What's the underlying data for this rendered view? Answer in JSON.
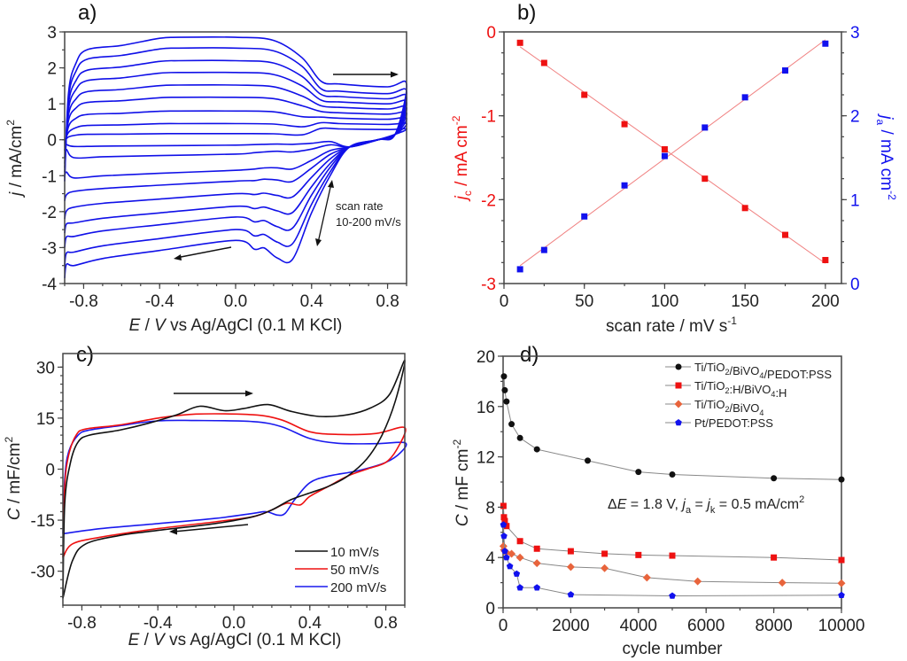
{
  "chart_data": [
    {
      "id": "a",
      "panel_label": "a)",
      "type": "line",
      "title": "",
      "xlabel": "E / V vs Ag/AgCl (0.1 M KCl)",
      "ylabel": "j / mA/cm2",
      "xlim": [
        -0.9,
        0.9
      ],
      "ylim": [
        -4,
        3
      ],
      "xticks": [
        "-0.8",
        "-0.4",
        "0.0",
        "0.4",
        "0.8"
      ],
      "xtick_values": [
        -0.8,
        -0.4,
        0.0,
        0.4,
        0.8
      ],
      "yticks": [
        "-4",
        "-3",
        "-2",
        "-1",
        "0",
        "1",
        "2",
        "3"
      ],
      "ytick_values": [
        -4,
        -3,
        -2,
        -1,
        0,
        1,
        2,
        3
      ],
      "color": "#1010e8",
      "annotation": [
        "scan rate",
        "10-200 mV/s"
      ],
      "scan_rates_mV_s": [
        10,
        25,
        50,
        75,
        100,
        125,
        150,
        175,
        200
      ],
      "anodic_plateau": [
        0.17,
        0.45,
        0.8,
        1.18,
        1.52,
        1.87,
        2.2,
        2.55,
        2.85
      ],
      "anodic_end": [
        0.3,
        0.45,
        0.6,
        0.75,
        0.9,
        1.05,
        1.2,
        1.35,
        1.55
      ],
      "cathodic_plateau": [
        -0.15,
        -0.4,
        -0.85,
        -1.15,
        -1.5,
        -1.85,
        -2.15,
        -2.5,
        -2.8
      ],
      "cathodic_start": [
        -0.15,
        -0.3,
        -1.0,
        -1.7,
        -2.2,
        -2.6,
        -3.0,
        -3.5,
        -3.85
      ],
      "cathodic_peak_depth": [
        0,
        0,
        0.1,
        0.2,
        0.35,
        0.5,
        0.7,
        0.85,
        1.05
      ]
    },
    {
      "id": "b",
      "panel_label": "b)",
      "type": "scatter",
      "title": "",
      "xlabel": "scan rate / mV s-1",
      "ylabel_left": "jc / mA cm-2",
      "ylabel_right": "ja / mA cm-2",
      "xlim": [
        0,
        210
      ],
      "ylim_left": [
        -3,
        0
      ],
      "ylim_right": [
        0,
        3
      ],
      "xticks": [
        "0",
        "50",
        "100",
        "150",
        "200"
      ],
      "xtick_values": [
        0,
        50,
        100,
        150,
        200
      ],
      "yticks_left": [
        "-3",
        "-2",
        "-1",
        "0"
      ],
      "ytick_left_values": [
        -3,
        -2,
        -1,
        0
      ],
      "yticks_right": [
        "0",
        "1",
        "2",
        "3"
      ],
      "ytick_right_values": [
        0,
        1,
        2,
        3
      ],
      "fit_color": "#f08080",
      "x": [
        10,
        25,
        50,
        75,
        100,
        125,
        150,
        175,
        200
      ],
      "series": [
        {
          "name": "jc",
          "axis": "left",
          "color": "#ee1111",
          "values": [
            -0.13,
            -0.37,
            -0.75,
            -1.1,
            -1.4,
            -1.75,
            -2.1,
            -2.42,
            -2.72
          ]
        },
        {
          "name": "ja",
          "axis": "right",
          "color": "#1111ee",
          "values": [
            0.17,
            0.4,
            0.8,
            1.17,
            1.52,
            1.86,
            2.22,
            2.54,
            2.86
          ]
        }
      ]
    },
    {
      "id": "c",
      "panel_label": "c)",
      "type": "line",
      "title": "",
      "xlabel": "E / V vs Ag/AgCl (0.1 M KCl)",
      "ylabel": "C / mF/cm2",
      "xlim": [
        -0.9,
        0.9
      ],
      "ylim": [
        -40,
        34
      ],
      "xticks": [
        "-0.8",
        "-0.4",
        "0.0",
        "0.4",
        "0.8"
      ],
      "xtick_values": [
        -0.8,
        -0.4,
        0.0,
        0.4,
        0.8
      ],
      "yticks": [
        "-30",
        "-15",
        "0",
        "15",
        "30"
      ],
      "ytick_values": [
        -30,
        -15,
        0,
        15,
        30
      ],
      "legend_position": "bottom-right",
      "series": [
        {
          "name": "10 mV/s",
          "color": "#111111",
          "upper": [
            [
              -0.9,
              -38
            ],
            [
              -0.89,
              -10
            ],
            [
              -0.86,
              2
            ],
            [
              -0.82,
              8
            ],
            [
              -0.76,
              10
            ],
            [
              -0.6,
              11.5
            ],
            [
              -0.45,
              13.5
            ],
            [
              -0.3,
              16
            ],
            [
              -0.18,
              18.5
            ],
            [
              -0.05,
              17.2
            ],
            [
              0.05,
              17.8
            ],
            [
              0.18,
              19
            ],
            [
              0.3,
              17
            ],
            [
              0.45,
              15.5
            ],
            [
              0.6,
              16
            ],
            [
              0.72,
              18
            ],
            [
              0.82,
              22
            ],
            [
              0.9,
              32
            ]
          ],
          "lower": [
            [
              0.9,
              32
            ],
            [
              0.85,
              20
            ],
            [
              0.78,
              10
            ],
            [
              0.7,
              3
            ],
            [
              0.6,
              -2
            ],
            [
              0.5,
              -5
            ],
            [
              0.4,
              -7
            ],
            [
              0.3,
              -9
            ],
            [
              0.2,
              -12
            ],
            [
              0.1,
              -14
            ],
            [
              -0.1,
              -16
            ],
            [
              -0.4,
              -18
            ],
            [
              -0.6,
              -19.5
            ],
            [
              -0.78,
              -22
            ],
            [
              -0.85,
              -27
            ],
            [
              -0.9,
              -38
            ]
          ]
        },
        {
          "name": "50 mV/s",
          "color": "#ee1111",
          "upper": [
            [
              -0.9,
              -26
            ],
            [
              -0.89,
              -5
            ],
            [
              -0.87,
              4
            ],
            [
              -0.83,
              10
            ],
            [
              -0.78,
              11.8
            ],
            [
              -0.6,
              13
            ],
            [
              -0.4,
              15
            ],
            [
              -0.2,
              16.2
            ],
            [
              0.1,
              16
            ],
            [
              0.25,
              14.5
            ],
            [
              0.4,
              11
            ],
            [
              0.55,
              10.2
            ],
            [
              0.75,
              10.5
            ],
            [
              0.9,
              12.2
            ]
          ],
          "lower": [
            [
              0.9,
              12.2
            ],
            [
              0.86,
              6
            ],
            [
              0.8,
              2
            ],
            [
              0.7,
              0
            ],
            [
              0.6,
              -2
            ],
            [
              0.5,
              -5
            ],
            [
              0.4,
              -8
            ],
            [
              0.35,
              -10.5
            ],
            [
              0.28,
              -10
            ],
            [
              0.2,
              -12
            ],
            [
              0.1,
              -14
            ],
            [
              -0.1,
              -15.5
            ],
            [
              -0.4,
              -17.5
            ],
            [
              -0.7,
              -20
            ],
            [
              -0.85,
              -22
            ],
            [
              -0.9,
              -26
            ]
          ]
        },
        {
          "name": "200 mV/s",
          "color": "#1a1aee",
          "upper": [
            [
              -0.9,
              -19
            ],
            [
              -0.89,
              -3
            ],
            [
              -0.87,
              5
            ],
            [
              -0.82,
              10
            ],
            [
              -0.76,
              11.5
            ],
            [
              -0.6,
              12.8
            ],
            [
              -0.4,
              14.2
            ],
            [
              -0.2,
              14.3
            ],
            [
              0.1,
              14
            ],
            [
              0.25,
              12.5
            ],
            [
              0.4,
              9
            ],
            [
              0.55,
              7.6
            ],
            [
              0.75,
              7.5
            ],
            [
              0.9,
              7.8
            ]
          ],
          "lower": [
            [
              0.9,
              7.8
            ],
            [
              0.88,
              5
            ],
            [
              0.8,
              2
            ],
            [
              0.65,
              -0.5
            ],
            [
              0.5,
              -2
            ],
            [
              0.4,
              -4
            ],
            [
              0.32,
              -9
            ],
            [
              0.27,
              -13
            ],
            [
              0.23,
              -13.5
            ],
            [
              0.17,
              -12.5
            ],
            [
              0.1,
              -13
            ],
            [
              -0.1,
              -14.5
            ],
            [
              -0.4,
              -16
            ],
            [
              -0.7,
              -17.5
            ],
            [
              -0.9,
              -19
            ]
          ]
        }
      ]
    },
    {
      "id": "d",
      "panel_label": "d)",
      "type": "line",
      "title": "",
      "xlabel": "cycle number",
      "ylabel": "C / mF cm-2",
      "xlim": [
        0,
        10000
      ],
      "ylim": [
        0,
        20
      ],
      "xticks": [
        "0",
        "2000",
        "4000",
        "6000",
        "8000",
        "10000"
      ],
      "xtick_values": [
        0,
        2000,
        4000,
        6000,
        8000,
        10000
      ],
      "yticks": [
        "0",
        "4",
        "8",
        "12",
        "16",
        "20"
      ],
      "ytick_values": [
        0,
        4,
        8,
        12,
        16,
        20
      ],
      "legend_position": "top-right",
      "annotation": "ΔE = 1.8 V, ja = jk = 0.5 mA/cm2",
      "series": [
        {
          "name": "Ti/TiO2/BiVO4/PEDOT:PSS",
          "color": "#111111",
          "marker": "circle",
          "points": [
            [
              25,
              18.4
            ],
            [
              50,
              17.3
            ],
            [
              100,
              16.4
            ],
            [
              250,
              14.6
            ],
            [
              500,
              13.5
            ],
            [
              1000,
              12.6
            ],
            [
              2500,
              11.7
            ],
            [
              4000,
              10.8
            ],
            [
              5000,
              10.6
            ],
            [
              8000,
              10.3
            ],
            [
              10000,
              10.2
            ]
          ]
        },
        {
          "name": "Ti/TiO2:H/BiVO4:H",
          "color": "#ee1111",
          "marker": "square",
          "points": [
            [
              10,
              8.1
            ],
            [
              25,
              7.2
            ],
            [
              50,
              6.9
            ],
            [
              100,
              6.5
            ],
            [
              500,
              5.3
            ],
            [
              1000,
              4.7
            ],
            [
              2000,
              4.5
            ],
            [
              3000,
              4.3
            ],
            [
              4000,
              4.2
            ],
            [
              5000,
              4.15
            ],
            [
              8000,
              4.0
            ],
            [
              10000,
              3.8
            ]
          ]
        },
        {
          "name": "Ti/TiO2/BiVO4",
          "color": "#e8643c",
          "marker": "diamond",
          "points": [
            [
              10,
              4.9
            ],
            [
              25,
              4.6
            ],
            [
              50,
              4.5
            ],
            [
              100,
              4.4
            ],
            [
              250,
              4.3
            ],
            [
              500,
              4.0
            ],
            [
              1000,
              3.55
            ],
            [
              2000,
              3.25
            ],
            [
              3000,
              3.15
            ],
            [
              4250,
              2.4
            ],
            [
              5750,
              2.1
            ],
            [
              8250,
              2.0
            ],
            [
              10000,
              1.95
            ]
          ]
        },
        {
          "name": "Pt/PEDOT:PSS",
          "color": "#1111ee",
          "marker": "pentagon",
          "points": [
            [
              10,
              6.6
            ],
            [
              25,
              5.7
            ],
            [
              50,
              4.5
            ],
            [
              100,
              4.0
            ],
            [
              200,
              3.3
            ],
            [
              400,
              2.7
            ],
            [
              500,
              1.6
            ],
            [
              1000,
              1.6
            ],
            [
              2000,
              1.05
            ],
            [
              5000,
              0.95
            ],
            [
              10000,
              1.0
            ]
          ]
        }
      ]
    }
  ]
}
